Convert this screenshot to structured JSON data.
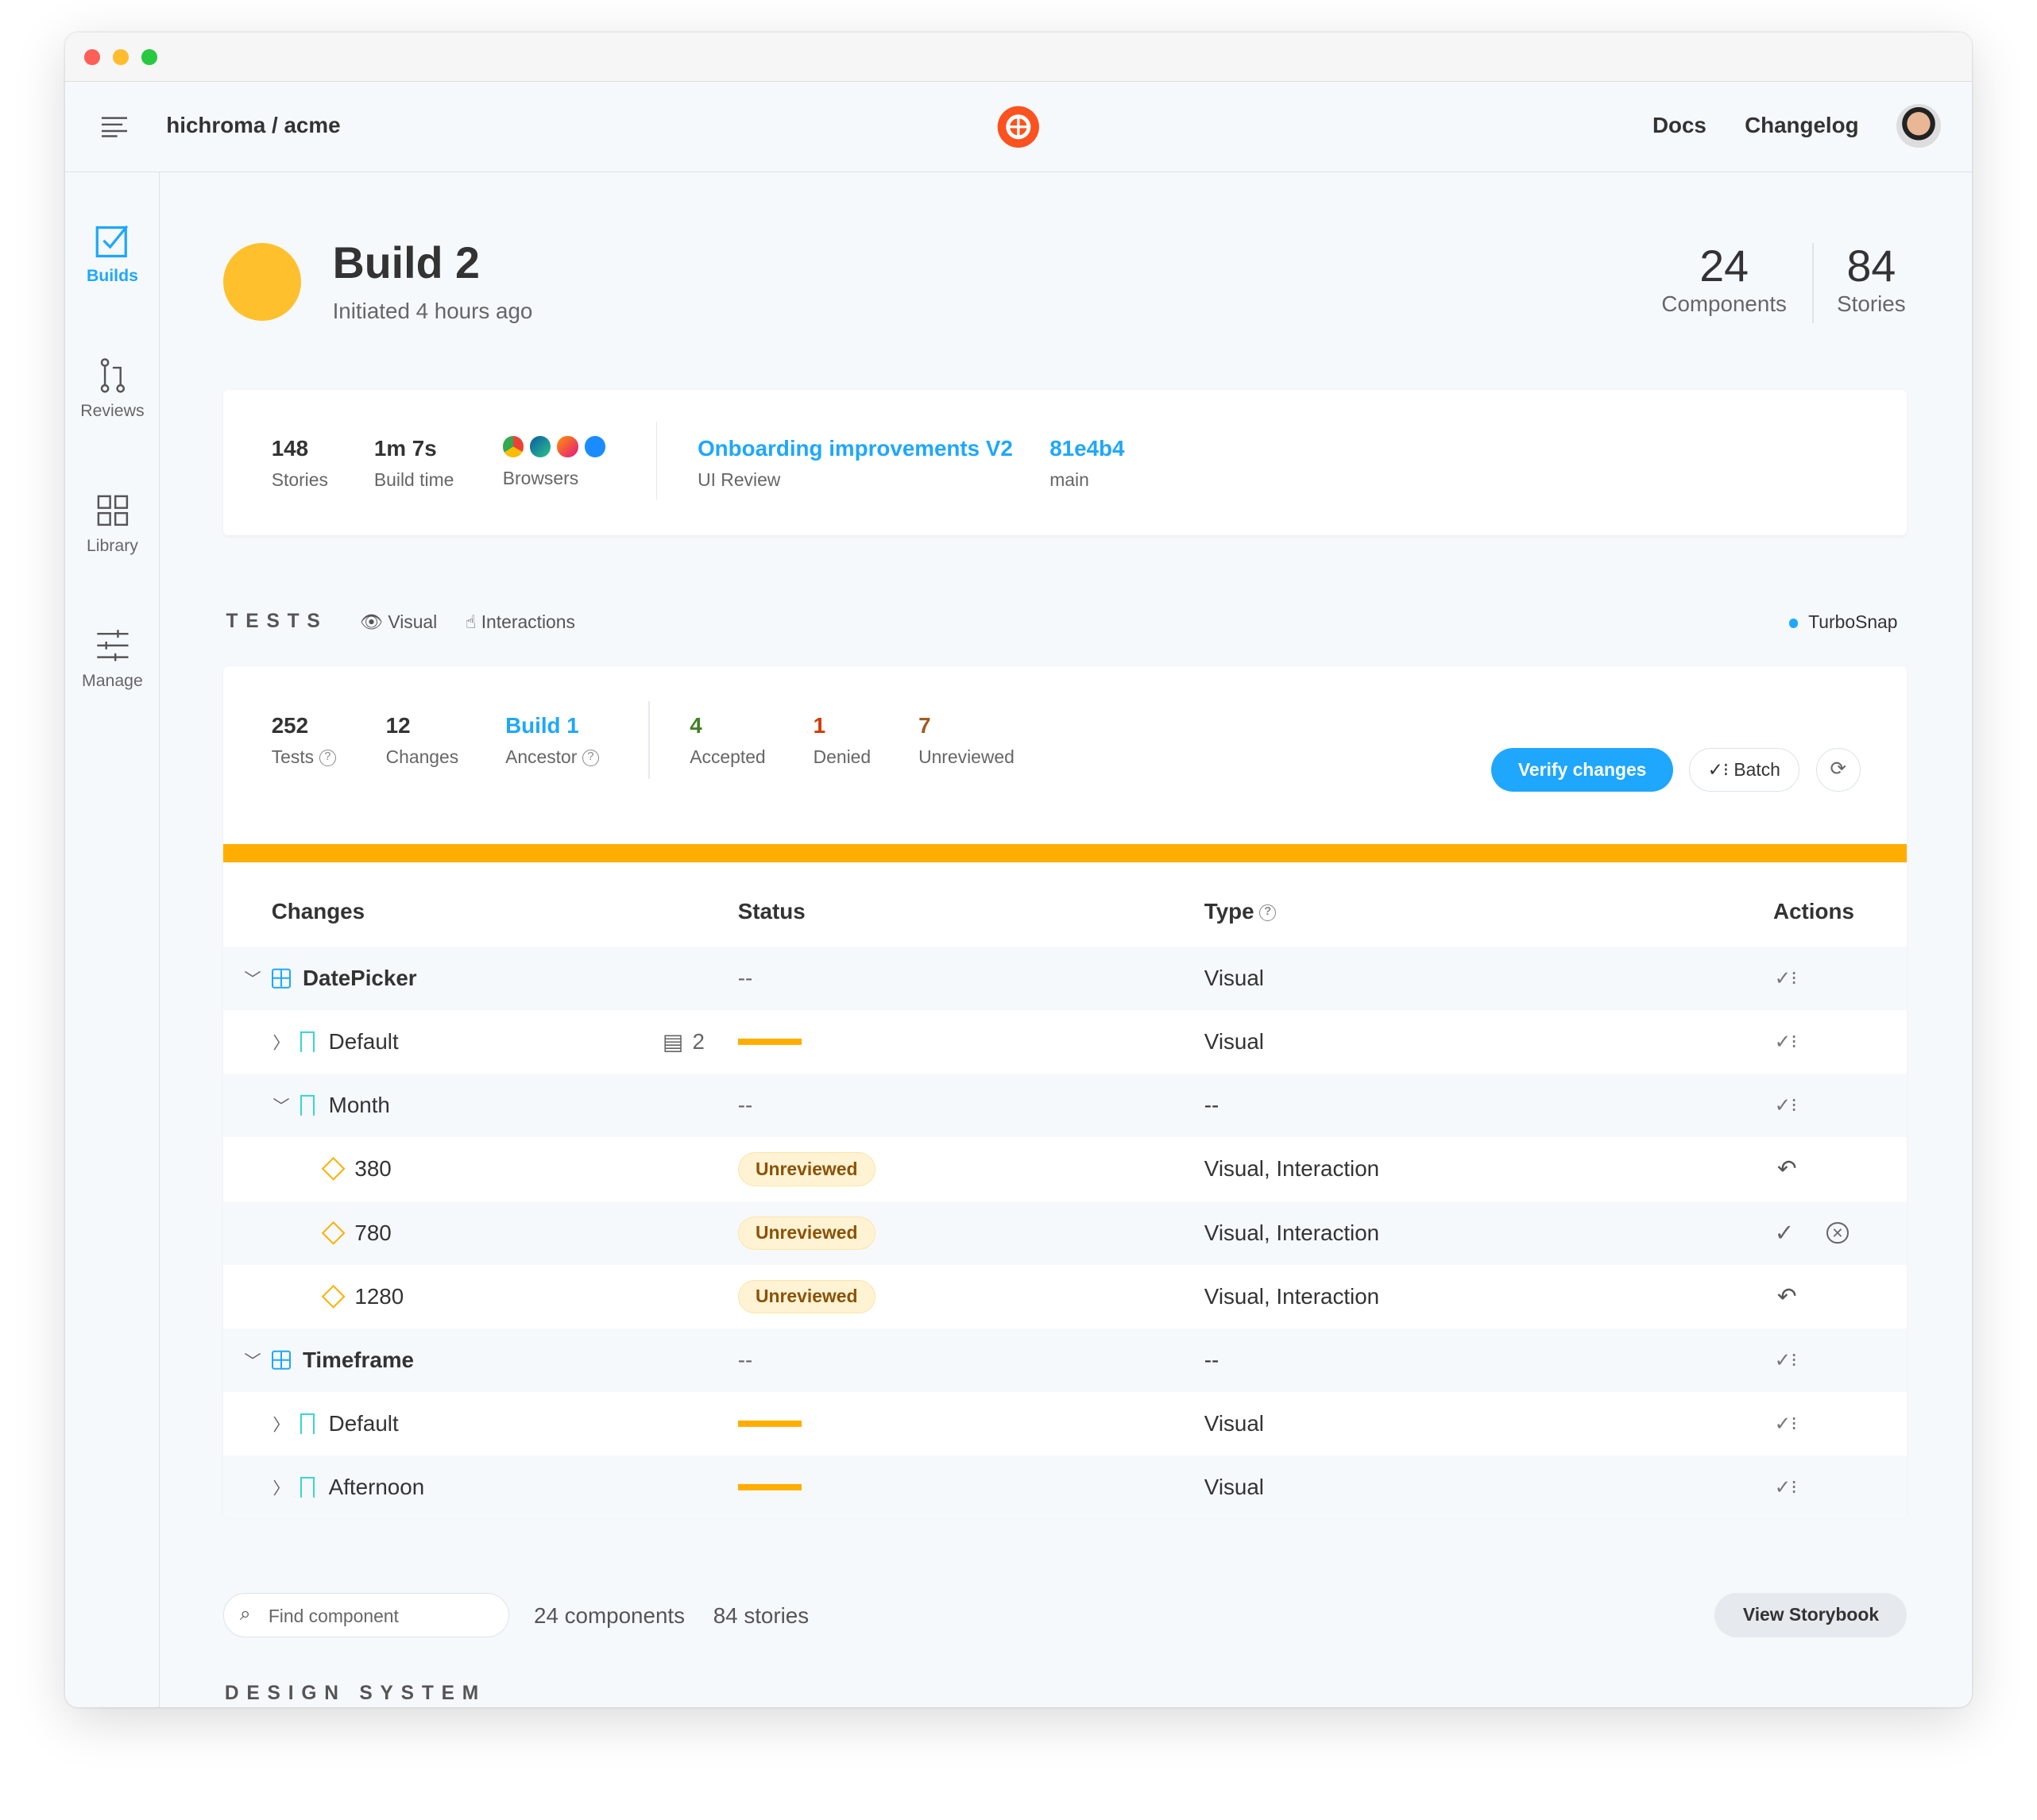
{
  "header": {
    "org": "hichroma / acme",
    "links": [
      "Docs",
      "Changelog"
    ]
  },
  "sidebar": {
    "items": [
      {
        "label": "Builds",
        "icon": "builds-check-icon",
        "active": true
      },
      {
        "label": "Reviews",
        "icon": "pull-request-icon"
      },
      {
        "label": "Library",
        "icon": "grid-icon"
      },
      {
        "label": "Manage",
        "icon": "sliders-icon"
      }
    ]
  },
  "build": {
    "title": "Build 2",
    "subtitle": "Initiated 4 hours ago",
    "status_color": "#ffc02e",
    "components": "24",
    "components_label": "Components",
    "stories": "84",
    "stories_label": "Stories"
  },
  "summary": {
    "stories": "148",
    "stories_label": "Stories",
    "build_time": "1m 7s",
    "build_time_label": "Build time",
    "browsers_label": "Browsers",
    "branch_title": "Onboarding improvements V2",
    "branch_sub": "UI Review",
    "commit": "81e4b4",
    "commit_branch": "main"
  },
  "tests": {
    "title": "TESTS",
    "filters": [
      "Visual",
      "Interactions"
    ],
    "turbosnap": "TurboSnap",
    "stats": {
      "tests": "252",
      "tests_label": "Tests",
      "changes": "12",
      "changes_label": "Changes",
      "ancestor": "Build 1",
      "ancestor_label": "Ancestor",
      "accepted": "4",
      "accepted_label": "Accepted",
      "denied": "1",
      "denied_label": "Denied",
      "unreviewed": "7",
      "unreviewed_label": "Unreviewed"
    },
    "verify": "Verify changes",
    "batch": "Batch",
    "progress_color": "#ffae00",
    "columns": [
      "Changes",
      "Status",
      "Type",
      "Actions"
    ],
    "rows": [
      {
        "name": "DatePicker",
        "kind": "component",
        "status": "--",
        "type": "Visual",
        "action": "batch"
      },
      {
        "name": "Default",
        "kind": "story",
        "comments": "2",
        "status": "bar",
        "type": "Visual",
        "action": "batch"
      },
      {
        "name": "Month",
        "kind": "story",
        "status": "--",
        "type": "--",
        "action": "batch"
      },
      {
        "name": "380",
        "kind": "viewport",
        "status": "Unreviewed",
        "type": "Visual, Interaction",
        "action": "undo"
      },
      {
        "name": "780",
        "kind": "viewport",
        "status": "Unreviewed",
        "type": "Visual, Interaction",
        "action": "accept-deny"
      },
      {
        "name": "1280",
        "kind": "viewport",
        "status": "Unreviewed",
        "type": "Visual, Interaction",
        "action": "undo"
      },
      {
        "name": "Timeframe",
        "kind": "component",
        "status": "--",
        "type": "--",
        "action": "batch"
      },
      {
        "name": "Default",
        "kind": "story",
        "status": "bar",
        "type": "Visual",
        "action": "batch"
      },
      {
        "name": "Afternoon",
        "kind": "story",
        "status": "bar",
        "type": "Visual",
        "action": "batch"
      }
    ]
  },
  "library": {
    "search_placeholder": "Find component",
    "components": "24 components",
    "stories": "84 stories",
    "view_storybook": "View Storybook",
    "section": "DESIGN SYSTEM"
  }
}
